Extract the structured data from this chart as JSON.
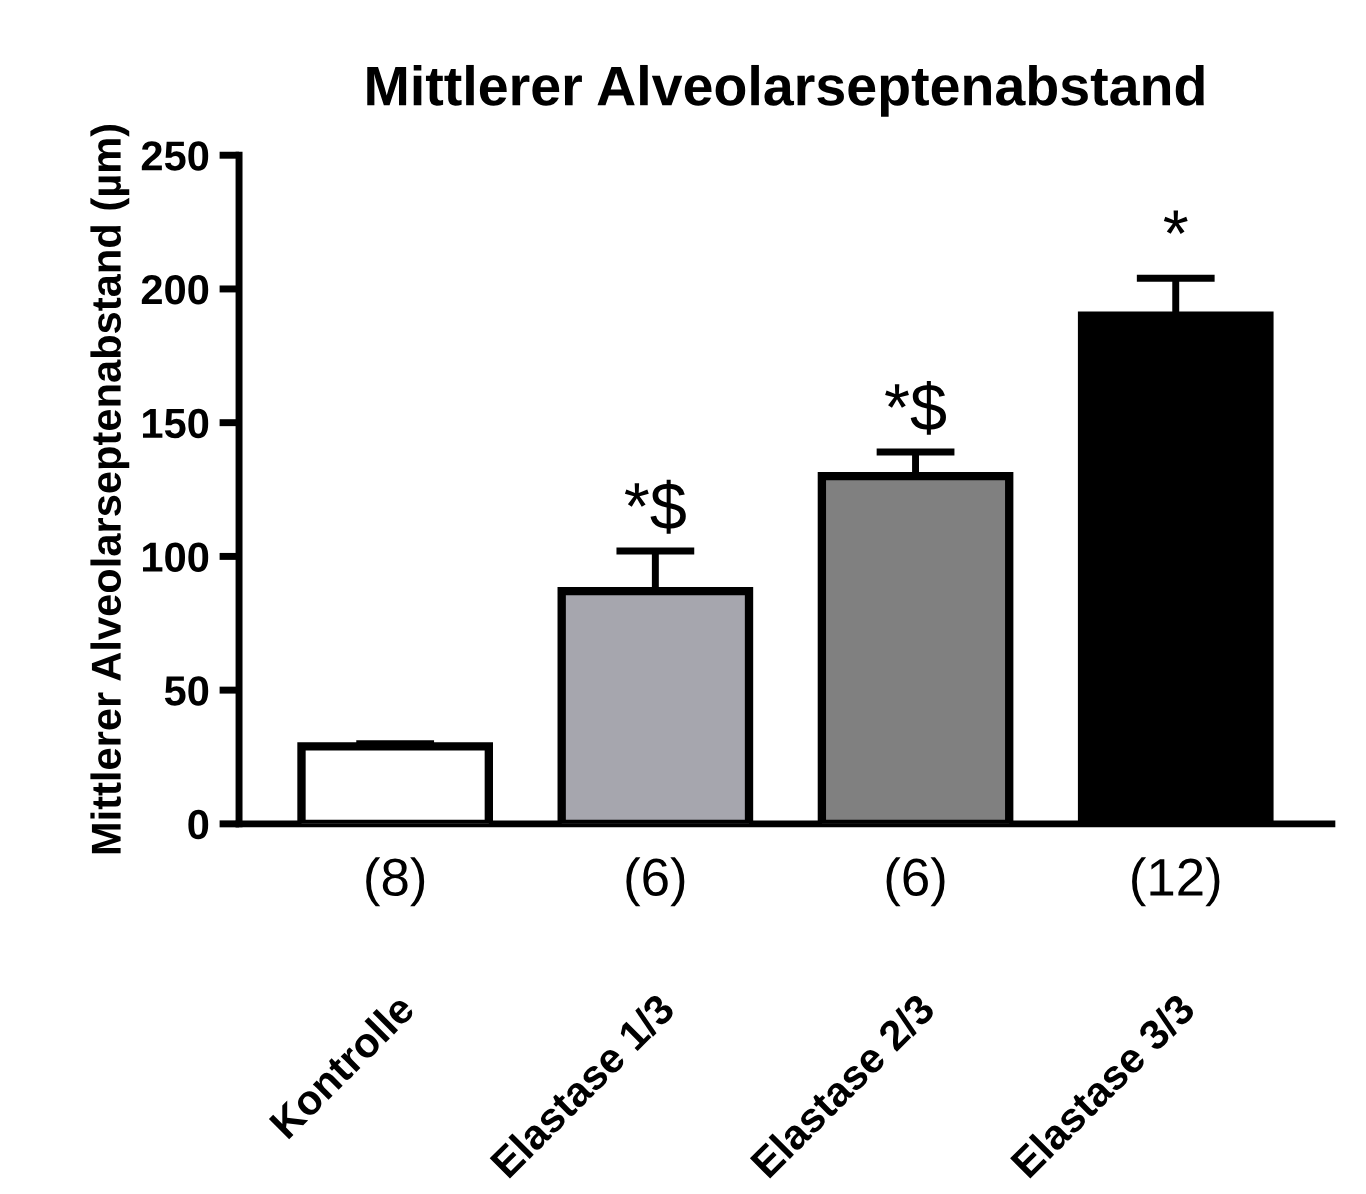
{
  "chart_data": {
    "type": "bar",
    "title": "Mittlerer Alveolarseptenabstand",
    "ylabel": "Mittlerer Alveolarseptenabstand (µm)",
    "categories": [
      "Kontrolle",
      "Elastase 1/3",
      "Elastase 2/3",
      "Elastase 3/3"
    ],
    "values": [
      29,
      87,
      130,
      190
    ],
    "errors": [
      1,
      15,
      9,
      14
    ],
    "colors": [
      "#ffffff",
      "#a6a6ae",
      "#808080",
      "#000000"
    ],
    "ylim": [
      0,
      250
    ],
    "yticks": [
      0,
      50,
      100,
      150,
      200,
      250
    ],
    "grid": false,
    "legend": false,
    "annotations": [
      {
        "text": "*$",
        "x": "Elastase 1/3",
        "y": 102
      },
      {
        "text": "*$",
        "x": "Elastase 2/3",
        "y": 139
      },
      {
        "text": "*",
        "x": "Elastase 3/3",
        "y": 204
      },
      "(8)",
      "(6)",
      "(6)",
      "(12)"
    ]
  }
}
